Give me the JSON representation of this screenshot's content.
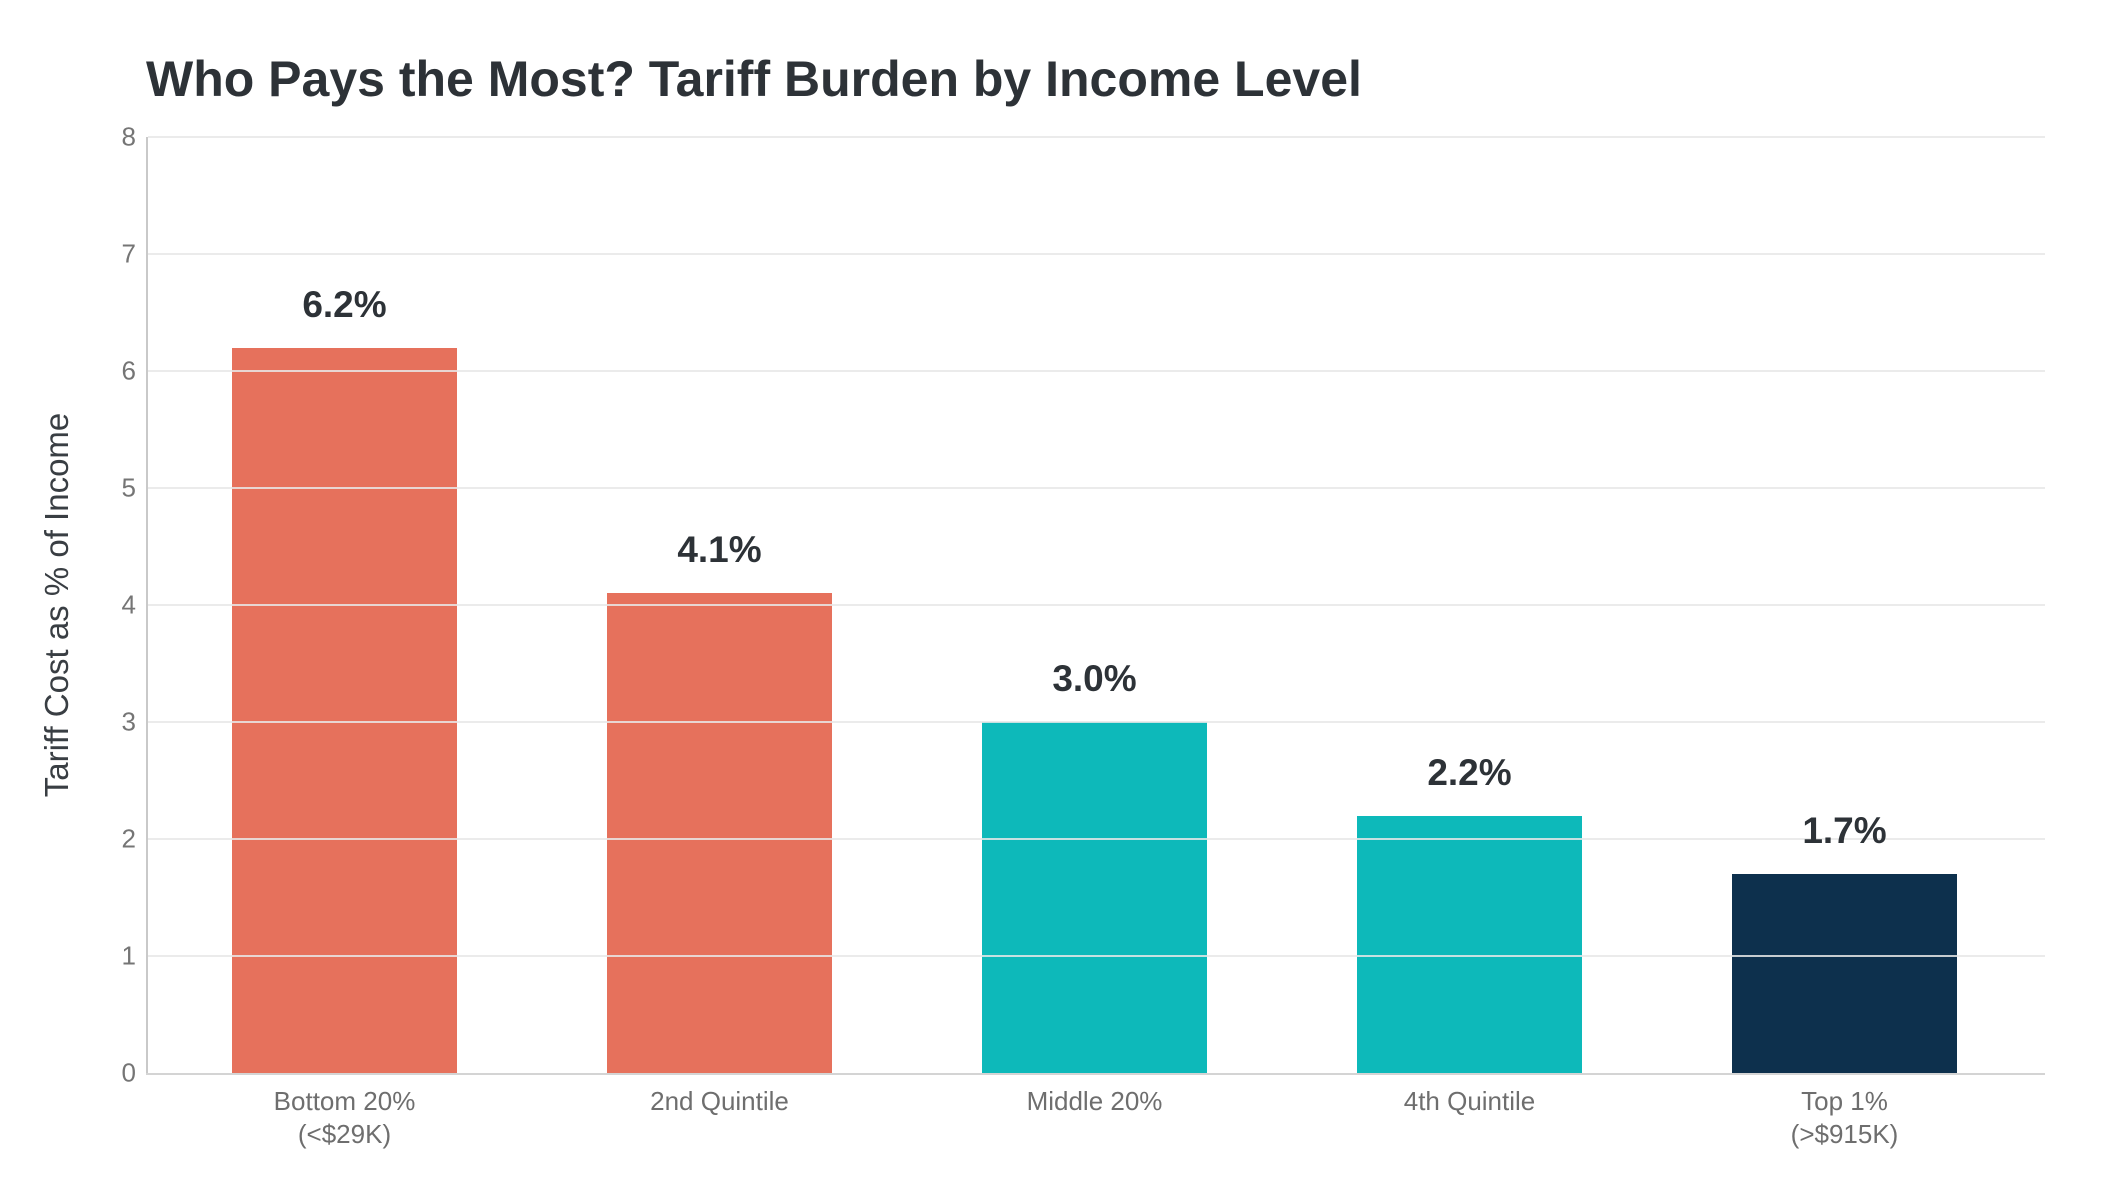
{
  "chart_data": {
    "type": "bar",
    "title": "Who Pays the Most? Tariff Burden by Income Level",
    "xlabel": "",
    "ylabel": "Tariff Cost as % of Income",
    "categories": [
      "Bottom 20%\n(<$29K)",
      "2nd Quintile",
      "Middle 20%",
      "4th Quintile",
      "Top 1%\n(>$915K)"
    ],
    "values": [
      6.2,
      4.1,
      3.0,
      2.2,
      1.7
    ],
    "value_labels": [
      "6.2%",
      "4.1%",
      "3.0%",
      "2.2%",
      "1.7%"
    ],
    "bar_colors": [
      "#e6715c",
      "#e6715c",
      "#0db9ba",
      "#0db9ba",
      "#0d304d"
    ],
    "ylim": [
      0,
      8
    ],
    "yticks": [
      0,
      1,
      2,
      3,
      4,
      5,
      6,
      7,
      8
    ],
    "grid": "horizontal-above-bars",
    "legend": "none",
    "style": {
      "background": "#ffffff",
      "gridline_color": "#e8e8e8",
      "axis_line_color": "#cccccc",
      "title_color": "#2d3237",
      "tick_label_color": "#6e6e6e",
      "value_label_color": "#2d3237"
    }
  }
}
